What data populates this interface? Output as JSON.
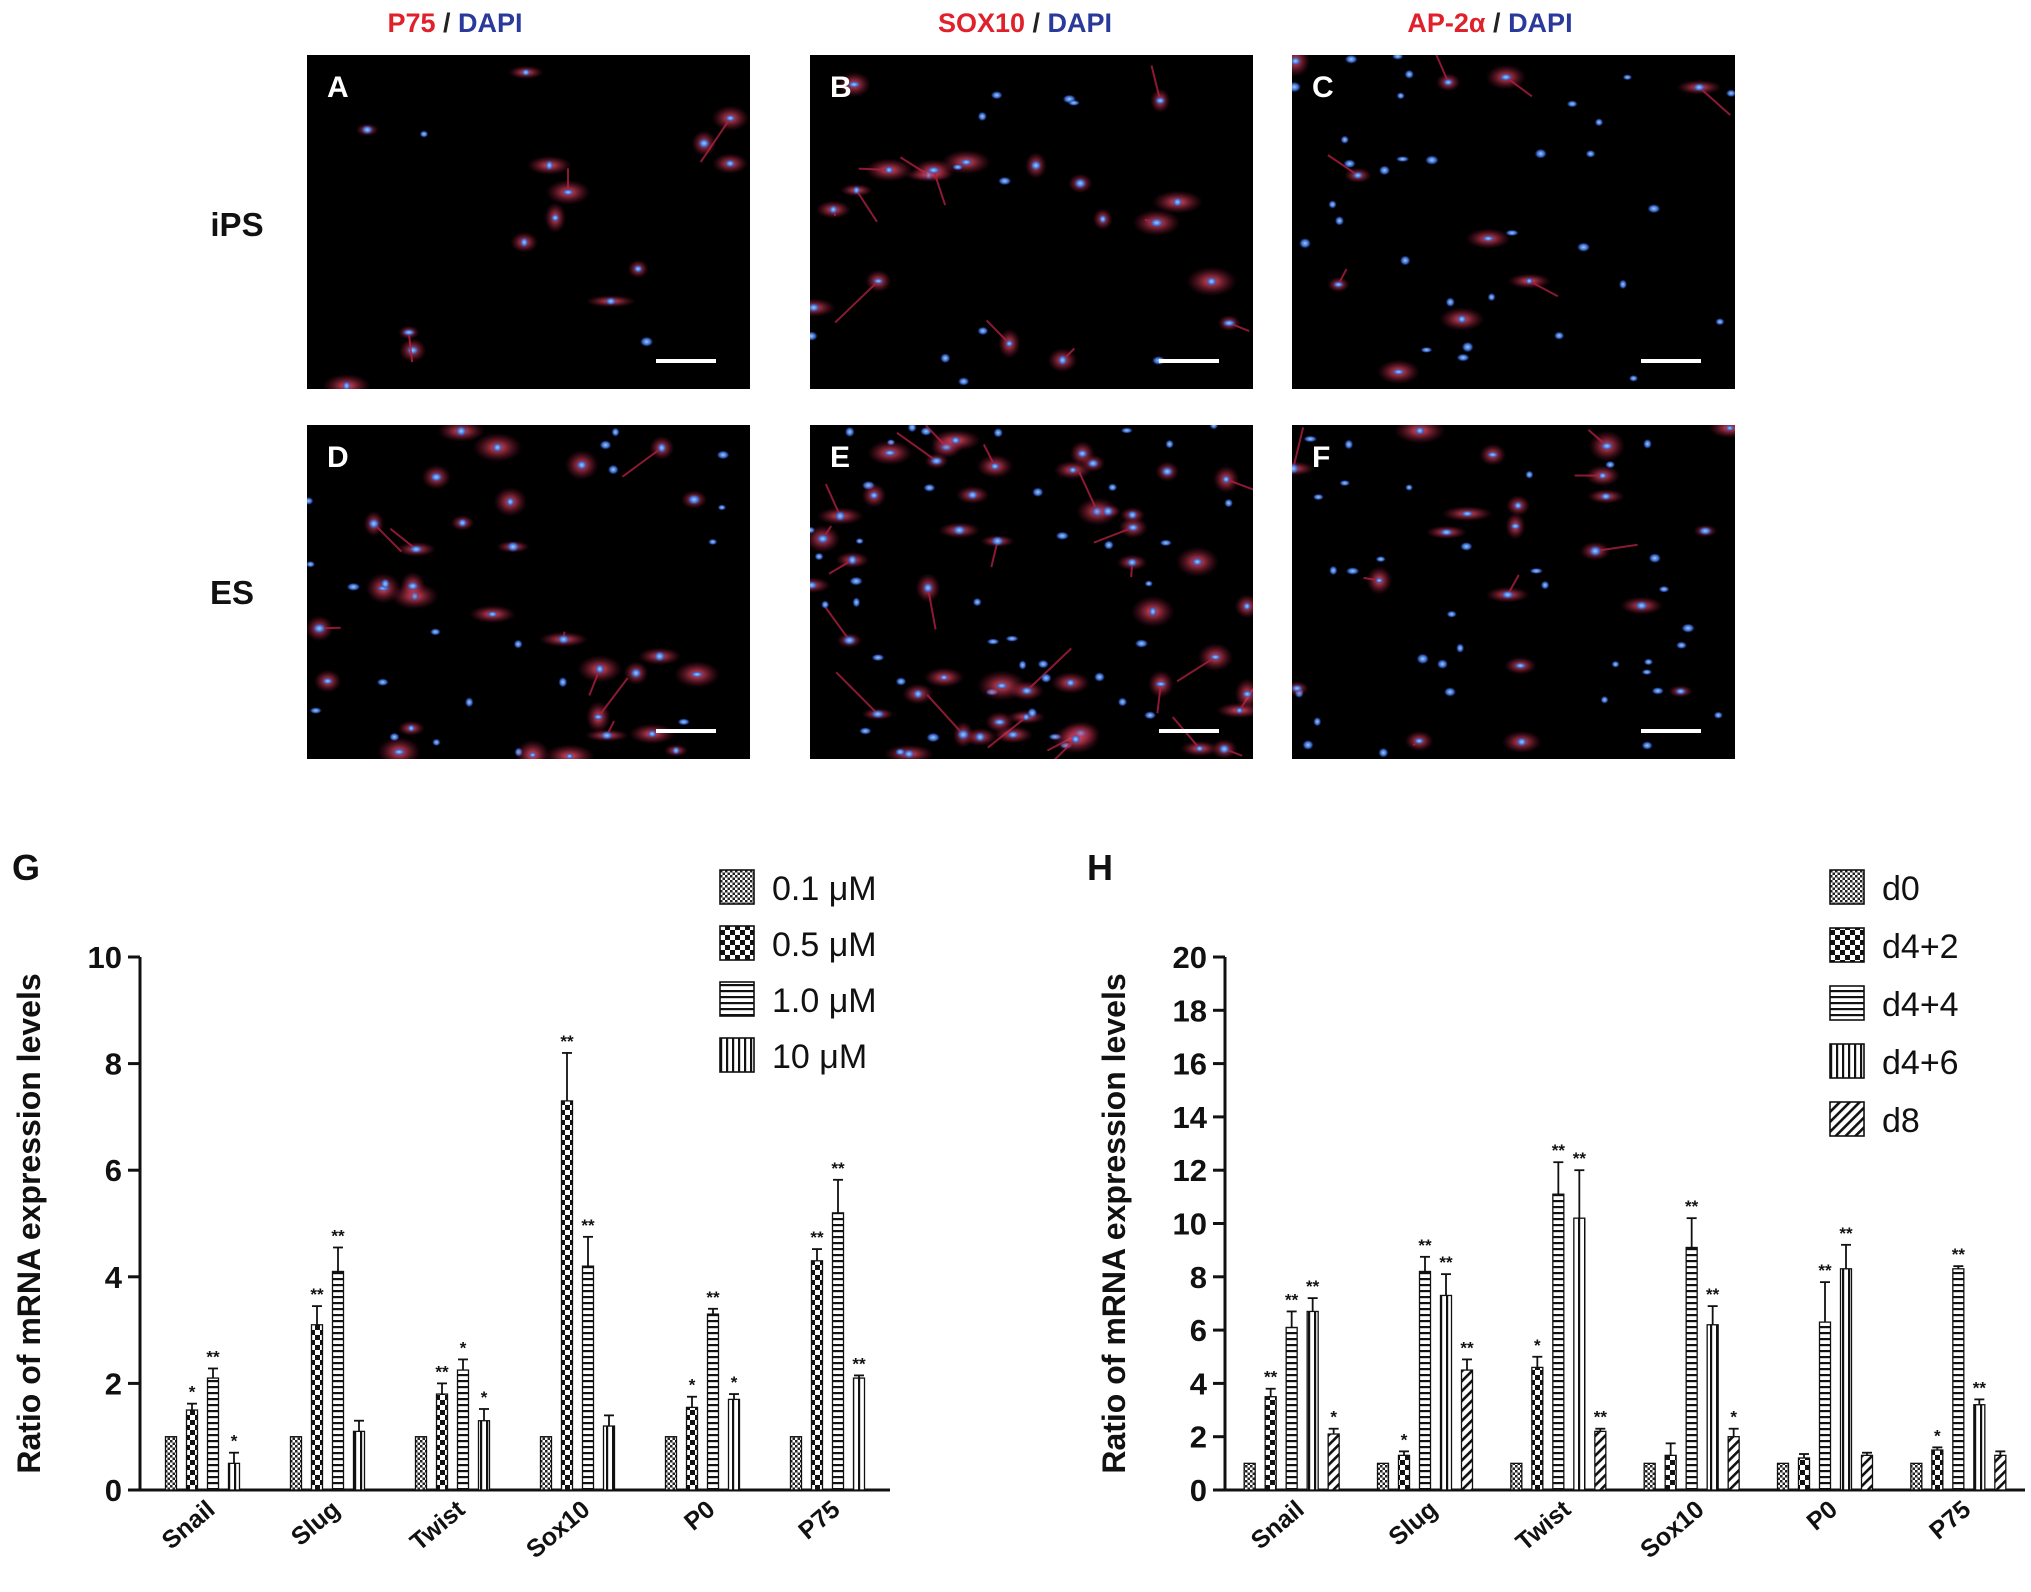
{
  "micrographs": {
    "headers": [
      {
        "marker": "P75",
        "sep": " / ",
        "dapi": "DAPI"
      },
      {
        "marker": "SOX10",
        "sep": " / ",
        "dapi": "DAPI"
      },
      {
        "marker": "AP-2α",
        "sep": " / ",
        "dapi": "DAPI"
      }
    ],
    "row_labels": [
      "iPS",
      "ES"
    ],
    "panel_letters": [
      "A",
      "B",
      "C",
      "D",
      "E",
      "F"
    ],
    "colors": {
      "marker": "#e0202a",
      "dapi": "#2a3a9a",
      "cell_red": "#c0304a",
      "cell_blue": "#4a78d8",
      "background": "#000000"
    }
  },
  "chart_data": [
    {
      "type": "bar",
      "panel": "G",
      "ylabel": "Ratio of mRNA expression levels",
      "xlabel": "",
      "ylim": [
        0,
        10
      ],
      "yticks": [
        0,
        2,
        4,
        6,
        8,
        10
      ],
      "categories": [
        "Snail",
        "Slug",
        "Twist",
        "Sox10",
        "P0",
        "P75"
      ],
      "legend_position": "top-right",
      "series": [
        {
          "name": "0.1 μM",
          "pattern": "fine-check",
          "values": [
            1,
            1,
            1,
            1,
            1,
            1
          ],
          "errors": [
            0,
            0,
            0,
            0,
            0,
            0
          ],
          "sig": [
            "",
            "",
            "",
            "",
            "",
            ""
          ]
        },
        {
          "name": "0.5 μM",
          "pattern": "check",
          "values": [
            1.5,
            3.1,
            1.8,
            7.3,
            1.55,
            4.3
          ],
          "errors": [
            0.12,
            0.35,
            0.2,
            0.9,
            0.2,
            0.22
          ],
          "sig": [
            "*",
            "**",
            "**",
            "**",
            "*",
            "**"
          ]
        },
        {
          "name": "1.0 μM",
          "pattern": "horizontal",
          "values": [
            2.1,
            4.1,
            2.25,
            4.2,
            3.3,
            5.2
          ],
          "errors": [
            0.18,
            0.45,
            0.2,
            0.55,
            0.1,
            0.62
          ],
          "sig": [
            "**",
            "**",
            "*",
            "**",
            "**",
            "**"
          ]
        },
        {
          "name": "10 μM",
          "pattern": "vertical",
          "values": [
            0.5,
            1.1,
            1.3,
            1.2,
            1.7,
            2.1
          ],
          "errors": [
            0.2,
            0.2,
            0.22,
            0.2,
            0.1,
            0.05
          ],
          "sig": [
            "*",
            "",
            "*",
            "",
            "*",
            "**"
          ]
        }
      ]
    },
    {
      "type": "bar",
      "panel": "H",
      "ylabel": "Ratio of mRNA expression levels",
      "xlabel": "",
      "ylim": [
        0,
        20
      ],
      "yticks": [
        0,
        2,
        4,
        6,
        8,
        10,
        12,
        14,
        16,
        18,
        20
      ],
      "categories": [
        "Snail",
        "Slug",
        "Twist",
        "Sox10",
        "P0",
        "P75"
      ],
      "legend_position": "top-right",
      "series": [
        {
          "name": "d0",
          "pattern": "fine-check",
          "values": [
            1,
            1,
            1,
            1,
            1,
            1
          ],
          "errors": [
            0,
            0,
            0,
            0,
            0,
            0
          ],
          "sig": [
            "",
            "",
            "",
            "",
            "",
            ""
          ]
        },
        {
          "name": "d4+2",
          "pattern": "check",
          "values": [
            3.5,
            1.3,
            4.6,
            1.3,
            1.2,
            1.5
          ],
          "errors": [
            0.3,
            0.15,
            0.4,
            0.45,
            0.15,
            0.1
          ],
          "sig": [
            "**",
            "*",
            "*",
            "",
            "",
            "*"
          ]
        },
        {
          "name": "d4+4",
          "pattern": "horizontal",
          "values": [
            6.1,
            8.2,
            11.1,
            9.1,
            6.3,
            8.3
          ],
          "errors": [
            0.6,
            0.55,
            1.2,
            1.1,
            1.5,
            0.1
          ],
          "sig": [
            "**",
            "**",
            "**",
            "**",
            "**",
            "**"
          ]
        },
        {
          "name": "d4+6",
          "pattern": "vertical",
          "values": [
            6.7,
            7.3,
            10.2,
            6.2,
            8.3,
            3.2
          ],
          "errors": [
            0.5,
            0.8,
            1.8,
            0.7,
            0.9,
            0.2
          ],
          "sig": [
            "**",
            "**",
            "**",
            "**",
            "**",
            "**"
          ]
        },
        {
          "name": "d8",
          "pattern": "diagonal",
          "values": [
            2.1,
            4.5,
            2.2,
            2.0,
            1.3,
            1.3
          ],
          "errors": [
            0.2,
            0.4,
            0.1,
            0.3,
            0.1,
            0.15
          ],
          "sig": [
            "*",
            "**",
            "**",
            "*",
            "",
            ""
          ]
        }
      ]
    }
  ]
}
